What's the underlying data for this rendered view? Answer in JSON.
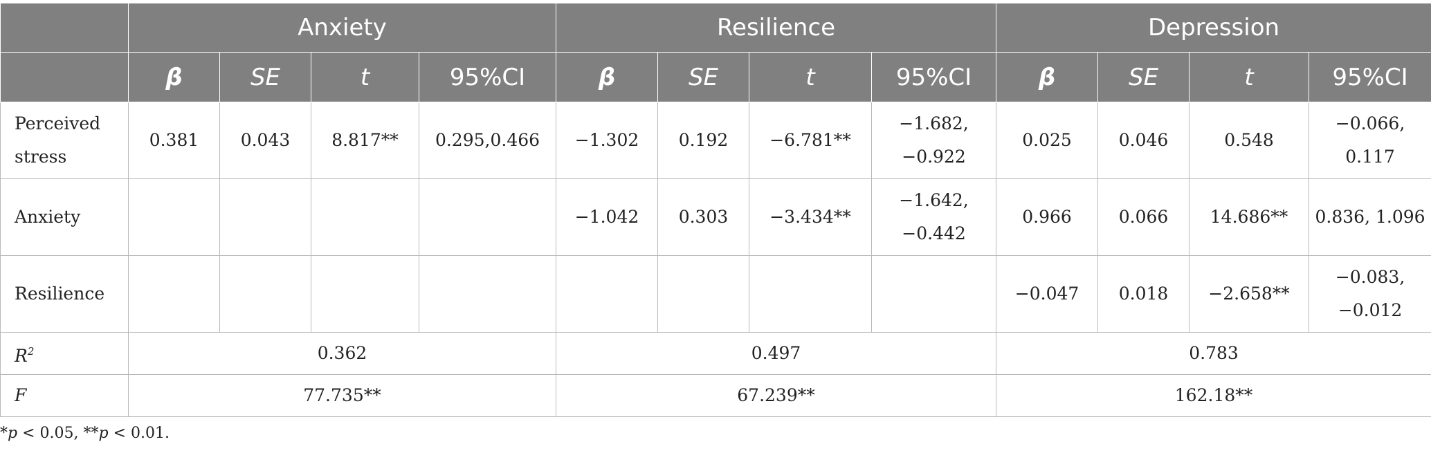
{
  "groups": [
    "Anxiety",
    "Resilience",
    "Depression"
  ],
  "subheaders": {
    "beta": "β",
    "se": "SE",
    "t": "t",
    "ci": "95%CI"
  },
  "rows": [
    {
      "label": "Perceived stress",
      "anxiety": {
        "beta": "0.381",
        "se": "0.043",
        "t": "8.817**",
        "ci": "0.295,0.466"
      },
      "resilience": {
        "beta": "−1.302",
        "se": "0.192",
        "t": "−6.781**",
        "ci": "−1.682, −0.922"
      },
      "depression": {
        "beta": "0.025",
        "se": "0.046",
        "t": "0.548",
        "ci": "−0.066, 0.117"
      }
    },
    {
      "label": "Anxiety",
      "anxiety": {
        "beta": "",
        "se": "",
        "t": "",
        "ci": ""
      },
      "resilience": {
        "beta": "−1.042",
        "se": "0.303",
        "t": "−3.434**",
        "ci": "−1.642, −0.442"
      },
      "depression": {
        "beta": "0.966",
        "se": "0.066",
        "t": "14.686**",
        "ci": "0.836, 1.096"
      }
    },
    {
      "label": "Resilience",
      "anxiety": {
        "beta": "",
        "se": "",
        "t": "",
        "ci": ""
      },
      "resilience": {
        "beta": "",
        "se": "",
        "t": "",
        "ci": ""
      },
      "depression": {
        "beta": "−0.047",
        "se": "0.018",
        "t": "−2.658**",
        "ci": "−0.083, −0.012"
      }
    }
  ],
  "r2": {
    "label": "R",
    "sup": "2",
    "anxiety": "0.362",
    "resilience": "0.497",
    "depression": "0.783"
  },
  "f": {
    "label": "F",
    "anxiety": "77.735**",
    "resilience": "67.239**",
    "depression": "162.18**"
  },
  "note": {
    "star1": "*",
    "p1": "p",
    "text1": " < 0.05, **",
    "p2": "p",
    "text2": " < 0.01."
  }
}
